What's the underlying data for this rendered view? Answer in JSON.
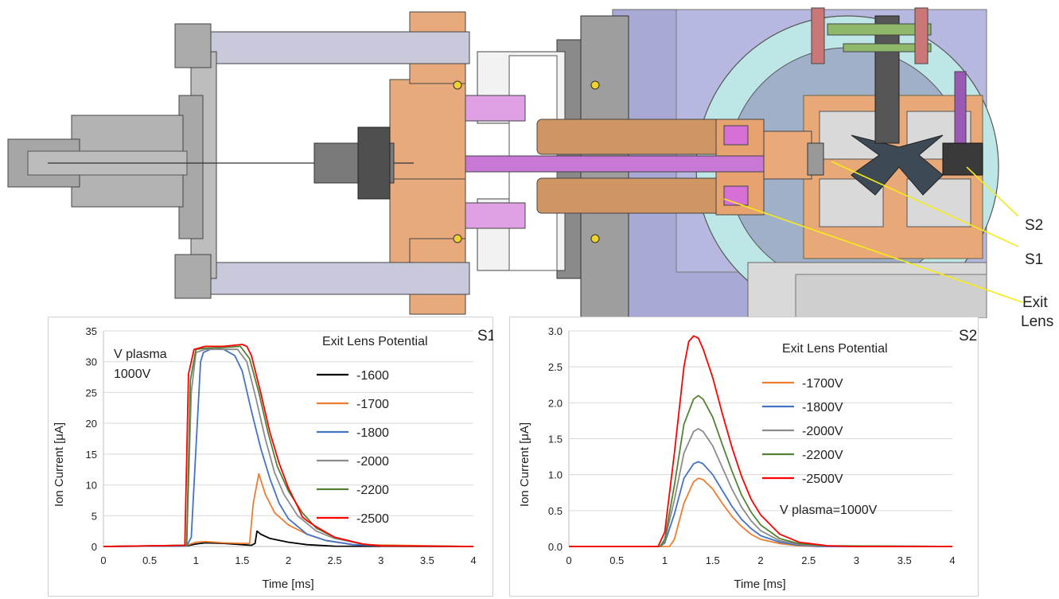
{
  "callouts": {
    "s2": "S2",
    "s1": "S1",
    "exit_lens_1": "Exit",
    "exit_lens_2": "Lens"
  },
  "chart_data": [
    {
      "type": "line",
      "panel_label": "S1",
      "xlabel": "Time  [ms]",
      "ylabel": "Ion Current  [μA]",
      "xlim": [
        0,
        4
      ],
      "ylim": [
        0,
        35
      ],
      "xticks": [
        "0",
        "0.5",
        "1",
        "1.5",
        "2",
        "2.5",
        "3",
        "3.5",
        "4"
      ],
      "yticks": [
        "0",
        "5",
        "10",
        "15",
        "20",
        "25",
        "30",
        "35"
      ],
      "legend_title": "Exit Lens Potential",
      "annotation_1": "V plasma",
      "annotation_2": "1000V",
      "legend_position": "right",
      "series": [
        {
          "name": "-1600",
          "color": "#000000",
          "x": [
            0,
            0.9,
            1.0,
            1.1,
            1.3,
            1.5,
            1.6,
            1.64,
            1.66,
            1.7,
            1.8,
            2.0,
            2.2,
            2.5,
            4.0
          ],
          "y": [
            0,
            0.1,
            0.4,
            0.6,
            0.5,
            0.3,
            0.2,
            0.5,
            2.5,
            2.0,
            1.3,
            0.7,
            0.3,
            0.05,
            0
          ]
        },
        {
          "name": "-1700",
          "color": "#ED7D31",
          "x": [
            0,
            0.9,
            1.0,
            1.1,
            1.3,
            1.5,
            1.58,
            1.62,
            1.68,
            1.75,
            1.85,
            2.0,
            2.2,
            2.4,
            2.7,
            4.0
          ],
          "y": [
            0,
            0.2,
            0.7,
            0.8,
            0.6,
            0.5,
            0.5,
            7.0,
            11.8,
            8.5,
            5.5,
            3.5,
            2.0,
            1.0,
            0.3,
            0
          ]
        },
        {
          "name": "-1800",
          "color": "#4472C4",
          "x": [
            0,
            0.9,
            0.95,
            1.0,
            1.05,
            1.08,
            1.2,
            1.3,
            1.42,
            1.5,
            1.6,
            1.7,
            1.8,
            1.9,
            2.0,
            2.2,
            2.4,
            2.7,
            3.0,
            4.0
          ],
          "y": [
            0,
            0.1,
            1.5,
            16.0,
            30.0,
            31.5,
            32.3,
            32.0,
            31.0,
            28.5,
            22.0,
            16.0,
            11.0,
            7.0,
            4.5,
            2.0,
            1.0,
            0.3,
            0.1,
            0
          ]
        },
        {
          "name": "-2000",
          "color": "#8C8C8C",
          "x": [
            0,
            0.9,
            0.95,
            1.0,
            1.1,
            1.3,
            1.45,
            1.55,
            1.65,
            1.75,
            1.85,
            1.95,
            2.1,
            2.3,
            2.5,
            2.8,
            3.0,
            4.0
          ],
          "y": [
            0,
            0.2,
            25.0,
            31.5,
            32.0,
            32.0,
            32.0,
            30.0,
            24.0,
            17.5,
            12.0,
            8.5,
            5.0,
            2.5,
            1.3,
            0.4,
            0.1,
            0
          ]
        },
        {
          "name": "-2200",
          "color": "#548235",
          "x": [
            0,
            0.9,
            0.94,
            1.0,
            1.1,
            1.3,
            1.48,
            1.58,
            1.68,
            1.78,
            1.88,
            2.0,
            2.15,
            2.3,
            2.5,
            2.8,
            3.0,
            4.0
          ],
          "y": [
            0,
            0.2,
            27.0,
            32.0,
            32.2,
            32.3,
            32.5,
            30.5,
            25.0,
            18.5,
            13.0,
            9.0,
            5.5,
            3.0,
            1.5,
            0.4,
            0.1,
            0
          ]
        },
        {
          "name": "-2500",
          "color": "#FF0000",
          "x": [
            0,
            0.88,
            0.92,
            0.98,
            1.1,
            1.3,
            1.5,
            1.55,
            1.6,
            1.7,
            1.8,
            1.9,
            2.0,
            2.1,
            2.15,
            2.2,
            2.3,
            2.5,
            2.8,
            3.0,
            4.0
          ],
          "y": [
            0,
            0.2,
            28.0,
            32.0,
            32.5,
            32.5,
            32.8,
            32.5,
            31.0,
            25.0,
            18.5,
            13.5,
            9.5,
            6.5,
            4.8,
            4.2,
            3.2,
            1.5,
            0.4,
            0.1,
            0
          ]
        }
      ]
    },
    {
      "type": "line",
      "panel_label": "S2",
      "xlabel": "Time  [ms]",
      "ylabel": "Ion Current  [μA]",
      "xlim": [
        0,
        4
      ],
      "ylim": [
        0,
        3.0
      ],
      "xticks": [
        "0",
        "0.5",
        "1",
        "1.5",
        "2",
        "2.5",
        "3",
        "3.5",
        "4"
      ],
      "yticks": [
        "0.0",
        "0.5",
        "1.0",
        "1.5",
        "2.0",
        "2.5",
        "3.0"
      ],
      "legend_title": "Exit Lens Potential",
      "annotation_1": "V plasma=1000V",
      "legend_position": "right",
      "series": [
        {
          "name": "-1700V",
          "color": "#ED7D31",
          "x": [
            0,
            1.05,
            1.1,
            1.2,
            1.3,
            1.35,
            1.4,
            1.5,
            1.6,
            1.7,
            1.8,
            1.9,
            2.0,
            2.2,
            2.4,
            2.6,
            4.0
          ],
          "y": [
            0,
            0,
            0.1,
            0.6,
            0.9,
            0.95,
            0.93,
            0.8,
            0.6,
            0.42,
            0.28,
            0.17,
            0.1,
            0.04,
            0.01,
            0,
            0
          ]
        },
        {
          "name": "-1800V",
          "color": "#4472C4",
          "x": [
            0,
            0.95,
            1.0,
            1.1,
            1.2,
            1.3,
            1.35,
            1.4,
            1.5,
            1.6,
            1.7,
            1.8,
            1.9,
            2.0,
            2.2,
            2.4,
            2.6,
            4.0
          ],
          "y": [
            0,
            0,
            0.05,
            0.45,
            0.95,
            1.15,
            1.18,
            1.15,
            1.0,
            0.78,
            0.56,
            0.38,
            0.25,
            0.15,
            0.06,
            0.02,
            0,
            0
          ]
        },
        {
          "name": "-2000V",
          "color": "#8C8C8C",
          "x": [
            0,
            0.95,
            1.0,
            1.1,
            1.2,
            1.3,
            1.35,
            1.4,
            1.5,
            1.6,
            1.7,
            1.8,
            1.9,
            2.0,
            2.2,
            2.4,
            2.6,
            4.0
          ],
          "y": [
            0,
            0,
            0.08,
            0.65,
            1.3,
            1.6,
            1.64,
            1.6,
            1.4,
            1.1,
            0.8,
            0.55,
            0.36,
            0.22,
            0.08,
            0.03,
            0.01,
            0
          ]
        },
        {
          "name": "-2200V",
          "color": "#548235",
          "x": [
            0,
            0.95,
            1.0,
            1.1,
            1.2,
            1.3,
            1.35,
            1.4,
            1.5,
            1.6,
            1.7,
            1.8,
            1.9,
            2.0,
            2.2,
            2.4,
            2.7,
            4.0
          ],
          "y": [
            0,
            0,
            0.1,
            0.85,
            1.7,
            2.05,
            2.1,
            2.05,
            1.8,
            1.42,
            1.05,
            0.72,
            0.48,
            0.3,
            0.11,
            0.04,
            0.01,
            0
          ]
        },
        {
          "name": "-2500V",
          "color": "#FF0000",
          "x": [
            0,
            0.93,
            1.0,
            1.1,
            1.2,
            1.25,
            1.3,
            1.35,
            1.4,
            1.5,
            1.6,
            1.7,
            1.8,
            1.9,
            2.0,
            2.2,
            2.4,
            2.7,
            3.0,
            4.0
          ],
          "y": [
            0,
            0,
            0.2,
            1.3,
            2.5,
            2.85,
            2.93,
            2.9,
            2.75,
            2.35,
            1.85,
            1.38,
            0.98,
            0.66,
            0.44,
            0.17,
            0.06,
            0.01,
            0,
            0
          ]
        }
      ]
    }
  ]
}
